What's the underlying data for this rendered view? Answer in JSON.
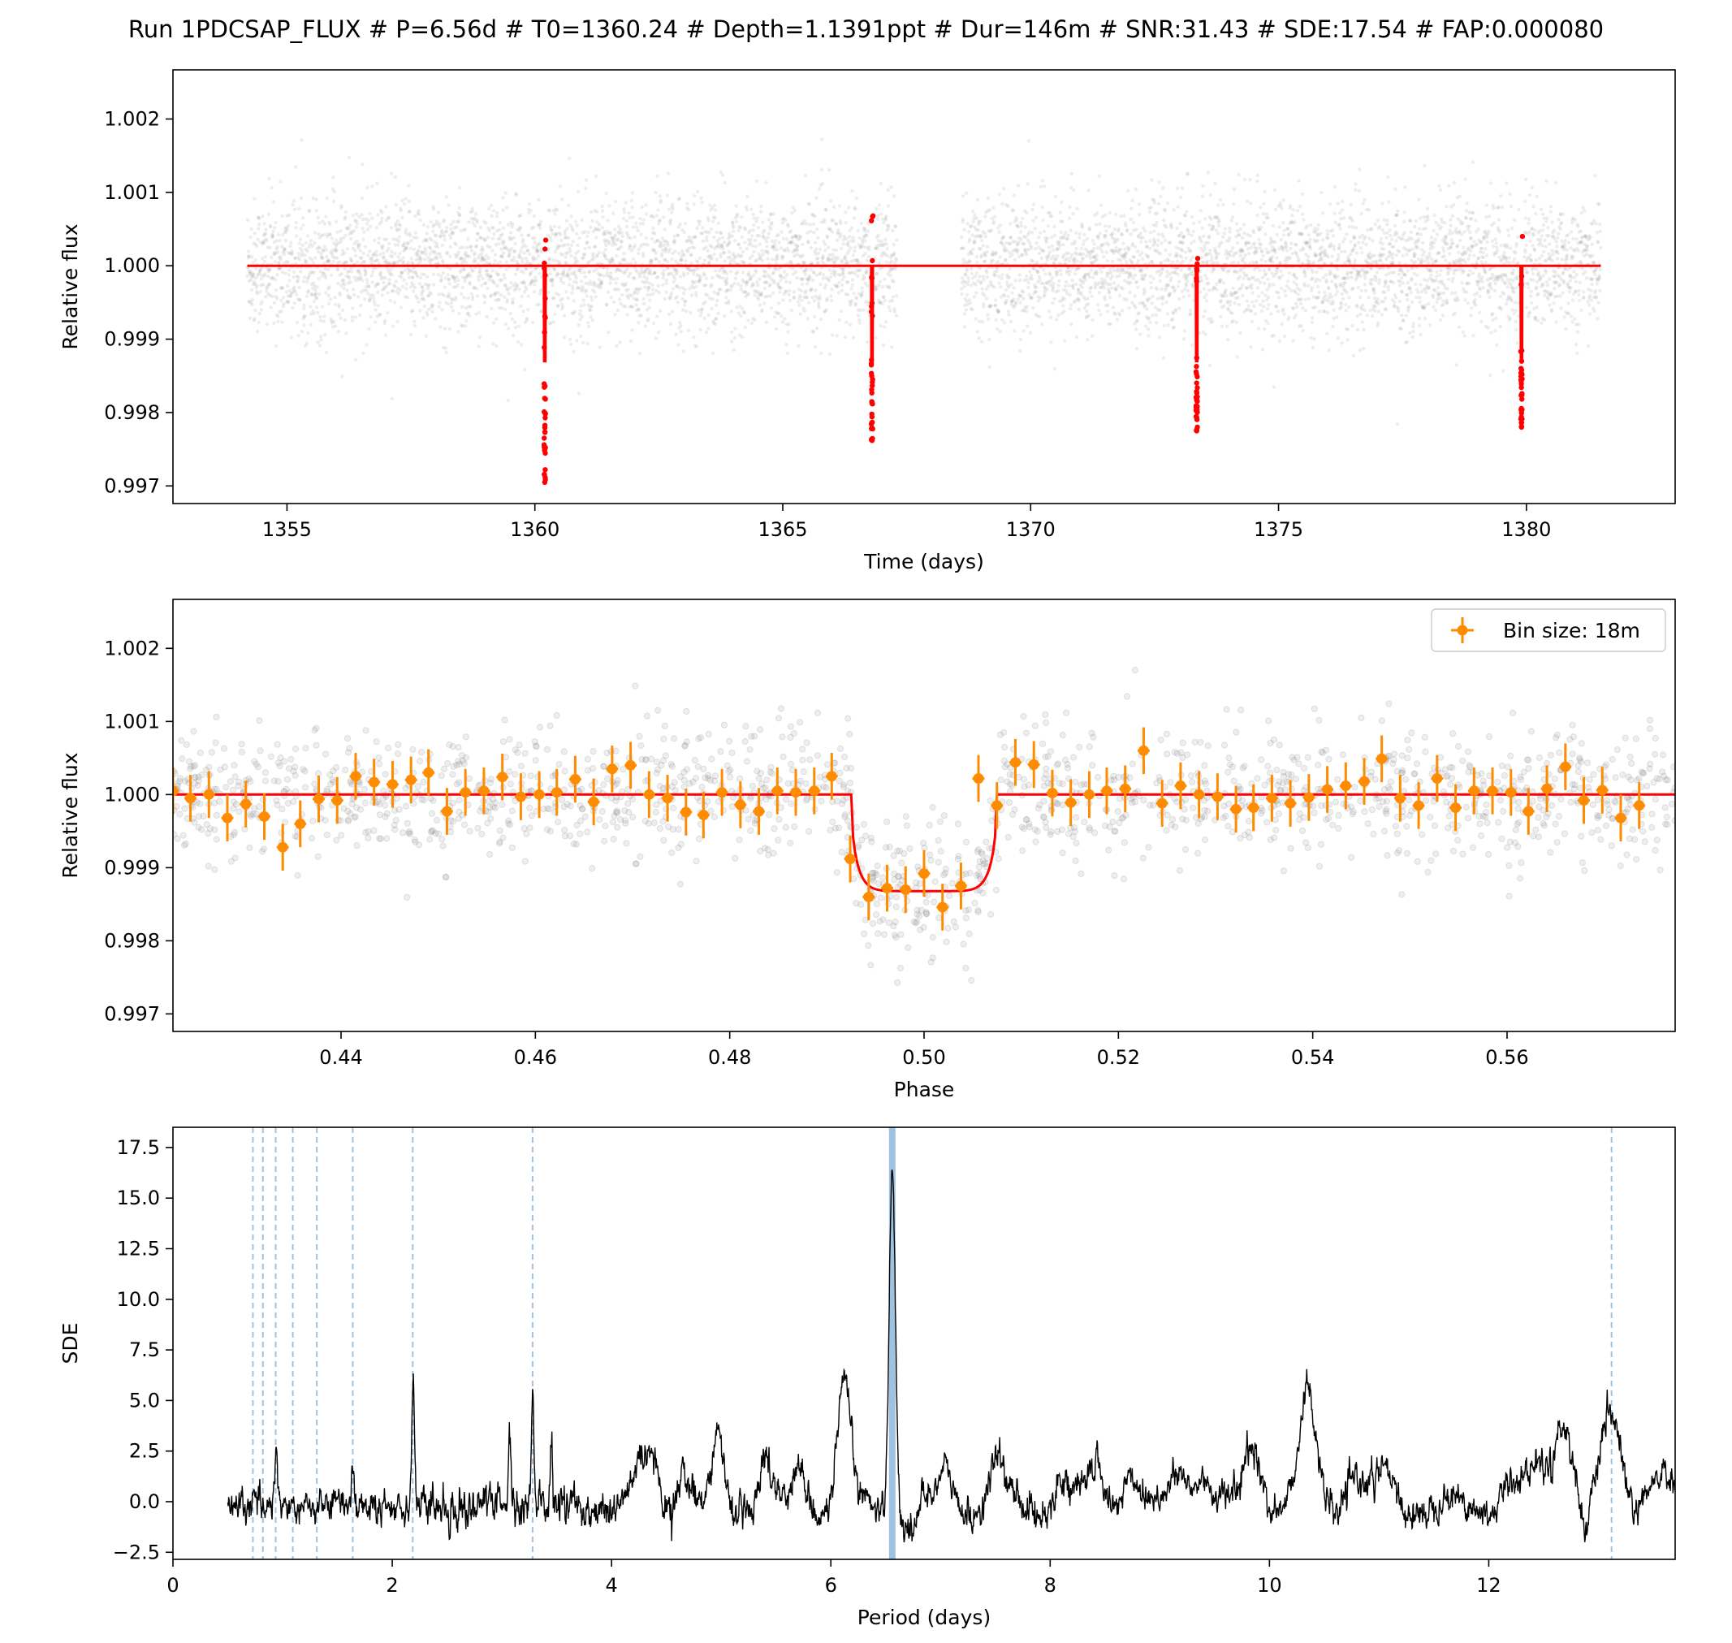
{
  "figure": {
    "title": "Run 1PDCSAP_FLUX # P=6.56d # T0=1360.24 # Depth=1.1391ppt # Dur=146m # SNR:31.43 # SDE:17.54 # FAP:0.000080"
  },
  "colors": {
    "raw_points": "#7f7f7f",
    "model": "#ff0000",
    "binned": "#ff8c00",
    "harmonics": "#9ec3e0",
    "period_highlight": "#9ec3e0",
    "periodogram": "#000000"
  },
  "chart_data": [
    {
      "type": "scatter",
      "panel": "light-curve",
      "xlabel": "Time (days)",
      "ylabel": "Relative flux",
      "xlim": [
        1352.7,
        1383.0
      ],
      "ylim": [
        0.99676,
        1.00267
      ],
      "xticks": [
        "1355",
        "1360",
        "1365",
        "1370",
        "1375",
        "1380"
      ],
      "yticks": [
        "0.997",
        "0.998",
        "0.999",
        "1.000",
        "1.001",
        "1.002"
      ],
      "grid": false,
      "series": [
        {
          "style": "raw-points",
          "segments": [
            [
              1354.2,
              1367.3
            ],
            [
              1368.6,
              1381.5
            ]
          ],
          "noise_sd": 0.00045
        },
        {
          "style": "model-line",
          "baseline": 1.0,
          "period": 6.56,
          "t0": 1360.24,
          "depth": 0.0013,
          "duration_days": 0.101,
          "transit_times": [
            1360.2,
            1366.8,
            1373.35,
            1379.9
          ]
        },
        {
          "style": "in-transit-points",
          "transit_times": [
            1360.2,
            1366.8,
            1373.35,
            1379.9
          ],
          "min_flux": [
            0.99705,
            0.99762,
            0.99775,
            0.9978
          ],
          "max_flux": [
            1.00035,
            1.00068,
            1.0001,
            1.0004
          ]
        }
      ]
    },
    {
      "type": "scatter",
      "panel": "phase-folded",
      "xlabel": "Phase",
      "ylabel": "Relative flux",
      "xlim": [
        0.4227,
        0.5773
      ],
      "ylim": [
        0.99676,
        1.00267
      ],
      "xticks": [
        "0.44",
        "0.46",
        "0.48",
        "0.50",
        "0.52",
        "0.54",
        "0.56"
      ],
      "yticks": [
        "0.997",
        "0.998",
        "0.999",
        "1.000",
        "1.001",
        "1.002"
      ],
      "legend": {
        "label": "Bin size: 18m",
        "position": "top-right"
      },
      "model": {
        "baseline": 1.0,
        "ingress": 0.4925,
        "egress": 0.5075,
        "bottom": 0.99868
      },
      "binned": {
        "phase": [
          0.4227,
          0.4245,
          0.4264,
          0.4283,
          0.4302,
          0.4321,
          0.434,
          0.4358,
          0.4377,
          0.4396,
          0.4415,
          0.4434,
          0.4453,
          0.4472,
          0.449,
          0.4509,
          0.4528,
          0.4547,
          0.4566,
          0.4585,
          0.4604,
          0.4622,
          0.4641,
          0.466,
          0.4679,
          0.4698,
          0.4717,
          0.4736,
          0.4755,
          0.4773,
          0.4792,
          0.4811,
          0.483,
          0.4849,
          0.4868,
          0.4887,
          0.4905,
          0.4924,
          0.4943,
          0.4962,
          0.4981,
          0.5,
          0.5019,
          0.5038,
          0.5056,
          0.5075,
          0.5094,
          0.5113,
          0.5132,
          0.5151,
          0.517,
          0.5188,
          0.5207,
          0.5226,
          0.5245,
          0.5264,
          0.5283,
          0.5302,
          0.5321,
          0.5339,
          0.5358,
          0.5377,
          0.5396,
          0.5415,
          0.5434,
          0.5453,
          0.5471,
          0.549,
          0.5509,
          0.5528,
          0.5547,
          0.5566,
          0.5585,
          0.5604,
          0.5622,
          0.5641,
          0.566,
          0.5679,
          0.5698,
          0.5717,
          0.5736,
          0.5755,
          0.5773
        ],
        "flux": [
          1.00005,
          0.99995,
          1.0,
          0.99968,
          0.99987,
          0.9997,
          0.99928,
          0.9996,
          0.99994,
          0.99992,
          1.00025,
          1.00017,
          1.00014,
          1.0002,
          1.0003,
          0.99977,
          1.00003,
          1.00005,
          1.00024,
          0.99997,
          1.0,
          1.00003,
          1.00021,
          0.9999,
          1.00035,
          1.0004,
          1.0,
          0.99995,
          0.99976,
          0.99972,
          1.00003,
          0.99986,
          0.99977,
          1.00005,
          1.00003,
          1.00005,
          1.00025,
          0.99912,
          0.9986,
          0.99872,
          0.9987,
          0.99892,
          0.99846,
          0.99875,
          1.00022,
          0.99985,
          1.00044,
          1.00041,
          1.00002,
          0.99989,
          1.0,
          1.00005,
          1.00008,
          1.0006,
          0.99988,
          1.00012,
          1.0,
          0.99997,
          0.9998,
          0.99982,
          0.99995,
          0.99988,
          0.99996,
          1.00007,
          1.00012,
          1.00018,
          1.00049,
          0.99995,
          0.99985,
          1.00022,
          0.99982,
          1.00005,
          1.00005,
          1.00003,
          0.99977,
          1.00008,
          1.00038,
          0.99992,
          1.00006,
          0.99968,
          0.99985
        ],
        "yerr": 0.00032,
        "xerr": 0.00062
      }
    },
    {
      "type": "line",
      "panel": "periodogram",
      "xlabel": "Period (days)",
      "ylabel": "SDE",
      "xlim": [
        0.0,
        13.7
      ],
      "ylim": [
        -2.85,
        18.5
      ],
      "xticks": [
        "0",
        "2",
        "4",
        "6",
        "8",
        "10",
        "12"
      ],
      "yticks": [
        "−2.5",
        "0.0",
        "2.5",
        "5.0",
        "7.5",
        "10.0",
        "12.5",
        "15.0",
        "17.5"
      ],
      "best_period": 6.56,
      "harmonic_periods": [
        0.729,
        0.82,
        0.937,
        1.093,
        1.312,
        1.64,
        2.187,
        3.28,
        13.12
      ],
      "period_range": [
        0.5,
        13.7
      ],
      "peaks": [
        {
          "x": 0.94,
          "y": 3.3
        },
        {
          "x": 1.64,
          "y": 2.4
        },
        {
          "x": 2.19,
          "y": 6.3
        },
        {
          "x": 3.07,
          "y": 3.9
        },
        {
          "x": 3.28,
          "y": 5.9
        },
        {
          "x": 3.45,
          "y": 2.7
        },
        {
          "x": 4.25,
          "y": 1.9
        },
        {
          "x": 4.38,
          "y": 2.6
        },
        {
          "x": 4.65,
          "y": 2.3
        },
        {
          "x": 4.97,
          "y": 3.3
        },
        {
          "x": 5.4,
          "y": 2.7
        },
        {
          "x": 5.72,
          "y": 2.0
        },
        {
          "x": 6.12,
          "y": 6.1
        },
        {
          "x": 6.56,
          "y": 17.54
        },
        {
          "x": 7.05,
          "y": 1.9
        },
        {
          "x": 7.52,
          "y": 2.3
        },
        {
          "x": 8.1,
          "y": 1.7
        },
        {
          "x": 8.42,
          "y": 2.3
        },
        {
          "x": 8.72,
          "y": 2.0
        },
        {
          "x": 9.18,
          "y": 2.1
        },
        {
          "x": 9.38,
          "y": 1.9
        },
        {
          "x": 9.85,
          "y": 3.4
        },
        {
          "x": 10.35,
          "y": 5.6
        },
        {
          "x": 10.78,
          "y": 1.8
        },
        {
          "x": 11.05,
          "y": 1.7
        },
        {
          "x": 12.2,
          "y": 1.4
        },
        {
          "x": 12.45,
          "y": 2.1
        },
        {
          "x": 12.68,
          "y": 4.7
        },
        {
          "x": 13.12,
          "y": 4.6
        },
        {
          "x": 13.55,
          "y": 1.7
        }
      ]
    }
  ]
}
